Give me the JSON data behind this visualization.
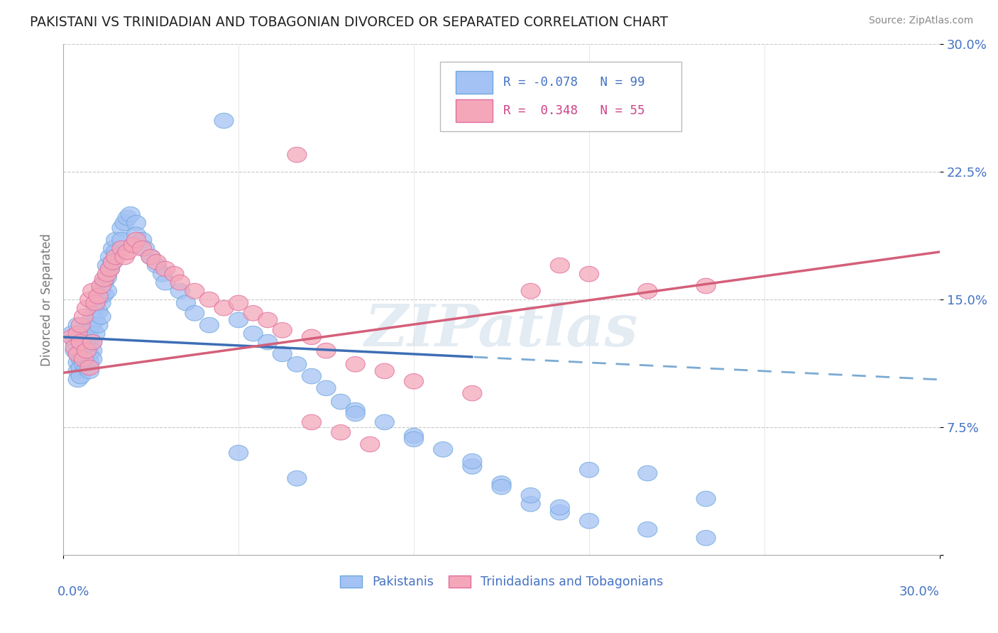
{
  "title": "PAKISTANI VS TRINIDADIAN AND TOBAGONIAN DIVORCED OR SEPARATED CORRELATION CHART",
  "source": "Source: ZipAtlas.com",
  "ylabel": "Divorced or Separated",
  "watermark": "ZIPatlas",
  "background_color": "#ffffff",
  "grid_color": "#c8c8c8",
  "xlim": [
    0.0,
    0.3
  ],
  "ylim": [
    0.0,
    0.3
  ],
  "ytick_vals": [
    0.0,
    0.075,
    0.15,
    0.225,
    0.3
  ],
  "ytick_labels": [
    "",
    "7.5%",
    "15.0%",
    "22.5%",
    "30.0%"
  ],
  "blue_face": "#a4c2f4",
  "blue_edge": "#6fa8dc",
  "pink_face": "#f4a7b9",
  "pink_edge": "#e06c9f",
  "blue_line_color": "#3d6eb5",
  "blue_dash_color": "#7baad4",
  "pink_line_color": "#d45f7a",
  "legend_blue_text_color": "#4472c4",
  "legend_pink_text_color": "#cc4488",
  "axis_label_color": "#4472c4",
  "ylabel_color": "#777777",
  "title_color": "#222222",
  "source_color": "#888888",
  "trend_blue_y0": 0.128,
  "trend_blue_y1": 0.103,
  "trend_blue_solid_end": 0.14,
  "trend_pink_y0": 0.107,
  "trend_pink_y1": 0.178,
  "legend_R_blue": "R = -0.078",
  "legend_N_blue": "N = 99",
  "legend_R_pink": "R =  0.348",
  "legend_N_pink": "N = 55",
  "bottom_label_blue": "Pakistanis",
  "bottom_label_pink": "Trinidadians and Tobagonians",
  "pak_x": [
    0.003,
    0.004,
    0.004,
    0.005,
    0.005,
    0.005,
    0.005,
    0.005,
    0.006,
    0.006,
    0.006,
    0.006,
    0.007,
    0.007,
    0.007,
    0.007,
    0.008,
    0.008,
    0.008,
    0.008,
    0.008,
    0.009,
    0.009,
    0.009,
    0.009,
    0.009,
    0.01,
    0.01,
    0.01,
    0.01,
    0.01,
    0.011,
    0.011,
    0.011,
    0.012,
    0.012,
    0.012,
    0.013,
    0.013,
    0.013,
    0.014,
    0.014,
    0.015,
    0.015,
    0.015,
    0.016,
    0.016,
    0.017,
    0.017,
    0.018,
    0.018,
    0.02,
    0.02,
    0.021,
    0.022,
    0.023,
    0.025,
    0.025,
    0.027,
    0.028,
    0.03,
    0.032,
    0.034,
    0.035,
    0.04,
    0.042,
    0.045,
    0.05,
    0.055,
    0.06,
    0.065,
    0.07,
    0.075,
    0.08,
    0.085,
    0.09,
    0.095,
    0.1,
    0.11,
    0.12,
    0.13,
    0.14,
    0.15,
    0.16,
    0.17,
    0.18,
    0.2,
    0.22,
    0.1,
    0.12,
    0.15,
    0.17,
    0.2,
    0.22,
    0.18,
    0.14,
    0.16,
    0.08,
    0.06
  ],
  "pak_y": [
    0.13,
    0.125,
    0.12,
    0.118,
    0.113,
    0.108,
    0.103,
    0.135,
    0.115,
    0.11,
    0.105,
    0.128,
    0.122,
    0.117,
    0.112,
    0.132,
    0.12,
    0.115,
    0.11,
    0.125,
    0.13,
    0.118,
    0.113,
    0.108,
    0.123,
    0.128,
    0.14,
    0.135,
    0.125,
    0.12,
    0.115,
    0.145,
    0.138,
    0.13,
    0.15,
    0.143,
    0.135,
    0.155,
    0.148,
    0.14,
    0.16,
    0.153,
    0.17,
    0.163,
    0.155,
    0.175,
    0.168,
    0.18,
    0.172,
    0.185,
    0.178,
    0.192,
    0.185,
    0.195,
    0.198,
    0.2,
    0.195,
    0.188,
    0.185,
    0.18,
    0.175,
    0.17,
    0.165,
    0.16,
    0.155,
    0.148,
    0.142,
    0.135,
    0.255,
    0.138,
    0.13,
    0.125,
    0.118,
    0.112,
    0.105,
    0.098,
    0.09,
    0.085,
    0.078,
    0.07,
    0.062,
    0.052,
    0.042,
    0.03,
    0.025,
    0.02,
    0.015,
    0.01,
    0.083,
    0.068,
    0.04,
    0.028,
    0.048,
    0.033,
    0.05,
    0.055,
    0.035,
    0.045,
    0.06
  ],
  "tri_x": [
    0.003,
    0.004,
    0.005,
    0.005,
    0.006,
    0.006,
    0.007,
    0.007,
    0.008,
    0.008,
    0.009,
    0.009,
    0.01,
    0.01,
    0.011,
    0.012,
    0.013,
    0.014,
    0.015,
    0.016,
    0.017,
    0.018,
    0.02,
    0.021,
    0.022,
    0.024,
    0.025,
    0.027,
    0.03,
    0.032,
    0.035,
    0.038,
    0.04,
    0.045,
    0.05,
    0.055,
    0.06,
    0.065,
    0.07,
    0.075,
    0.08,
    0.085,
    0.09,
    0.1,
    0.11,
    0.12,
    0.14,
    0.16,
    0.18,
    0.2,
    0.22,
    0.085,
    0.095,
    0.105,
    0.17
  ],
  "tri_y": [
    0.128,
    0.122,
    0.13,
    0.118,
    0.135,
    0.125,
    0.14,
    0.115,
    0.145,
    0.12,
    0.15,
    0.11,
    0.155,
    0.125,
    0.148,
    0.152,
    0.158,
    0.162,
    0.165,
    0.168,
    0.172,
    0.175,
    0.18,
    0.175,
    0.178,
    0.182,
    0.185,
    0.18,
    0.175,
    0.172,
    0.168,
    0.165,
    0.16,
    0.155,
    0.15,
    0.145,
    0.148,
    0.142,
    0.138,
    0.132,
    0.235,
    0.128,
    0.12,
    0.112,
    0.108,
    0.102,
    0.095,
    0.155,
    0.165,
    0.155,
    0.158,
    0.078,
    0.072,
    0.065,
    0.17
  ]
}
